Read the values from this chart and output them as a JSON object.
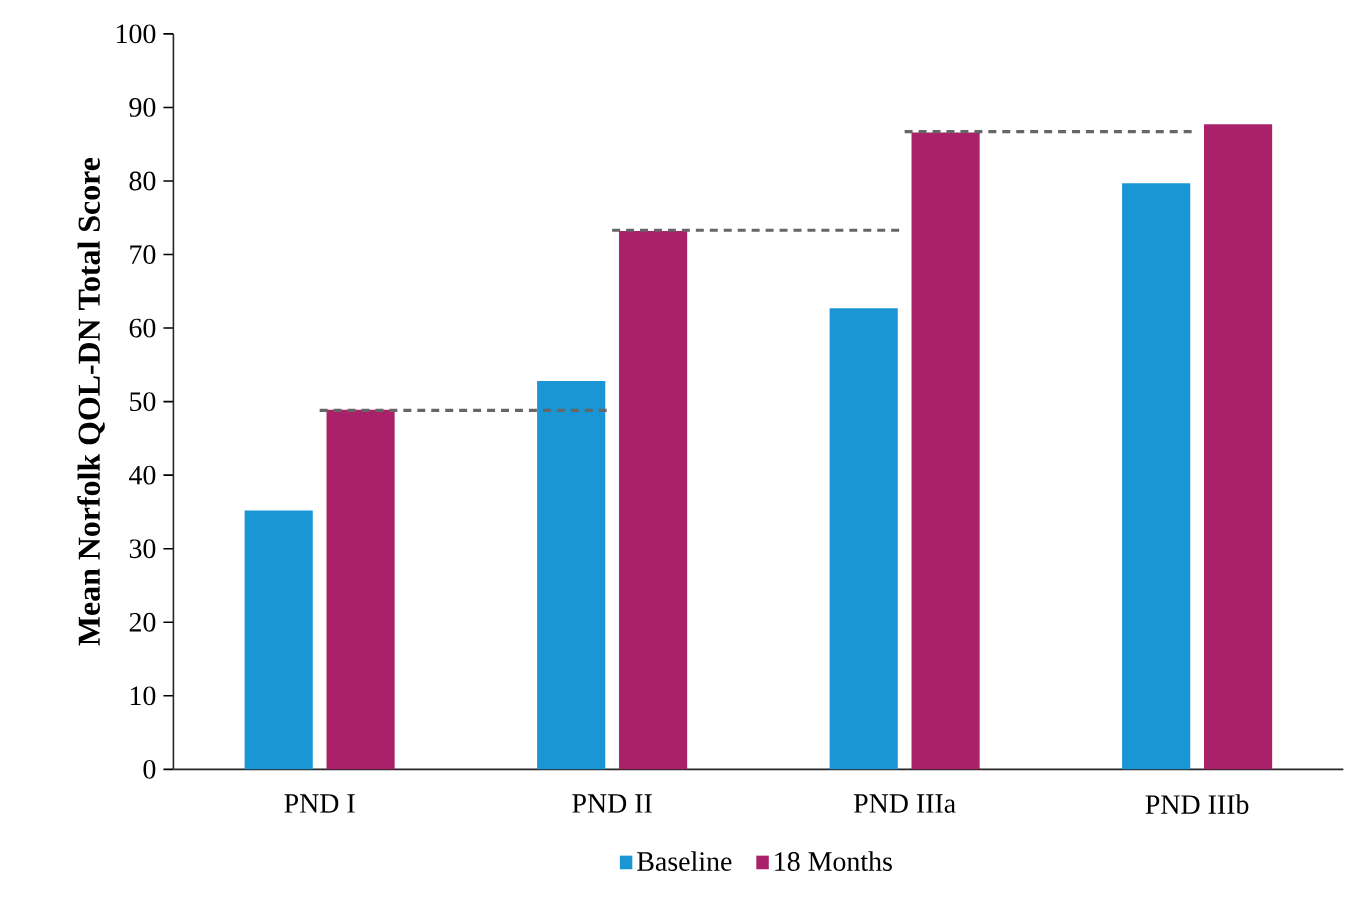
{
  "chart_data": {
    "type": "bar",
    "ylabel": "Mean Norfolk QOL-DN Total Score",
    "categories": [
      "PND I",
      "PND II",
      "PND IIIa",
      "PND IIIb"
    ],
    "series": [
      {
        "name": "Baseline",
        "color": "#1a96d4",
        "values": [
          35.2,
          52.8,
          62.7,
          79.7
        ]
      },
      {
        "name": "18 Months",
        "color": "#aa216a",
        "values": [
          48.9,
          73.2,
          86.6,
          87.7
        ]
      },
      {
        "type": "line",
        "color": "#666666",
        "line_style": "dashed",
        "values": [
          48.8,
          48.8,
          null,
          null
        ]
      },
      {
        "type": "line",
        "color": "#666666",
        "line_style": "dashed",
        "values": [
          null,
          73.3,
          73.3,
          null
        ]
      },
      {
        "type": "line",
        "color": "#666666",
        "line_style": "dashed",
        "values": [
          null,
          null,
          86.7,
          86.7
        ]
      }
    ],
    "ylim": [
      0,
      100
    ],
    "yticks": [
      0,
      10,
      20,
      30,
      40,
      50,
      60,
      70,
      80,
      90,
      100
    ],
    "legend": "bottom",
    "grid": false
  }
}
